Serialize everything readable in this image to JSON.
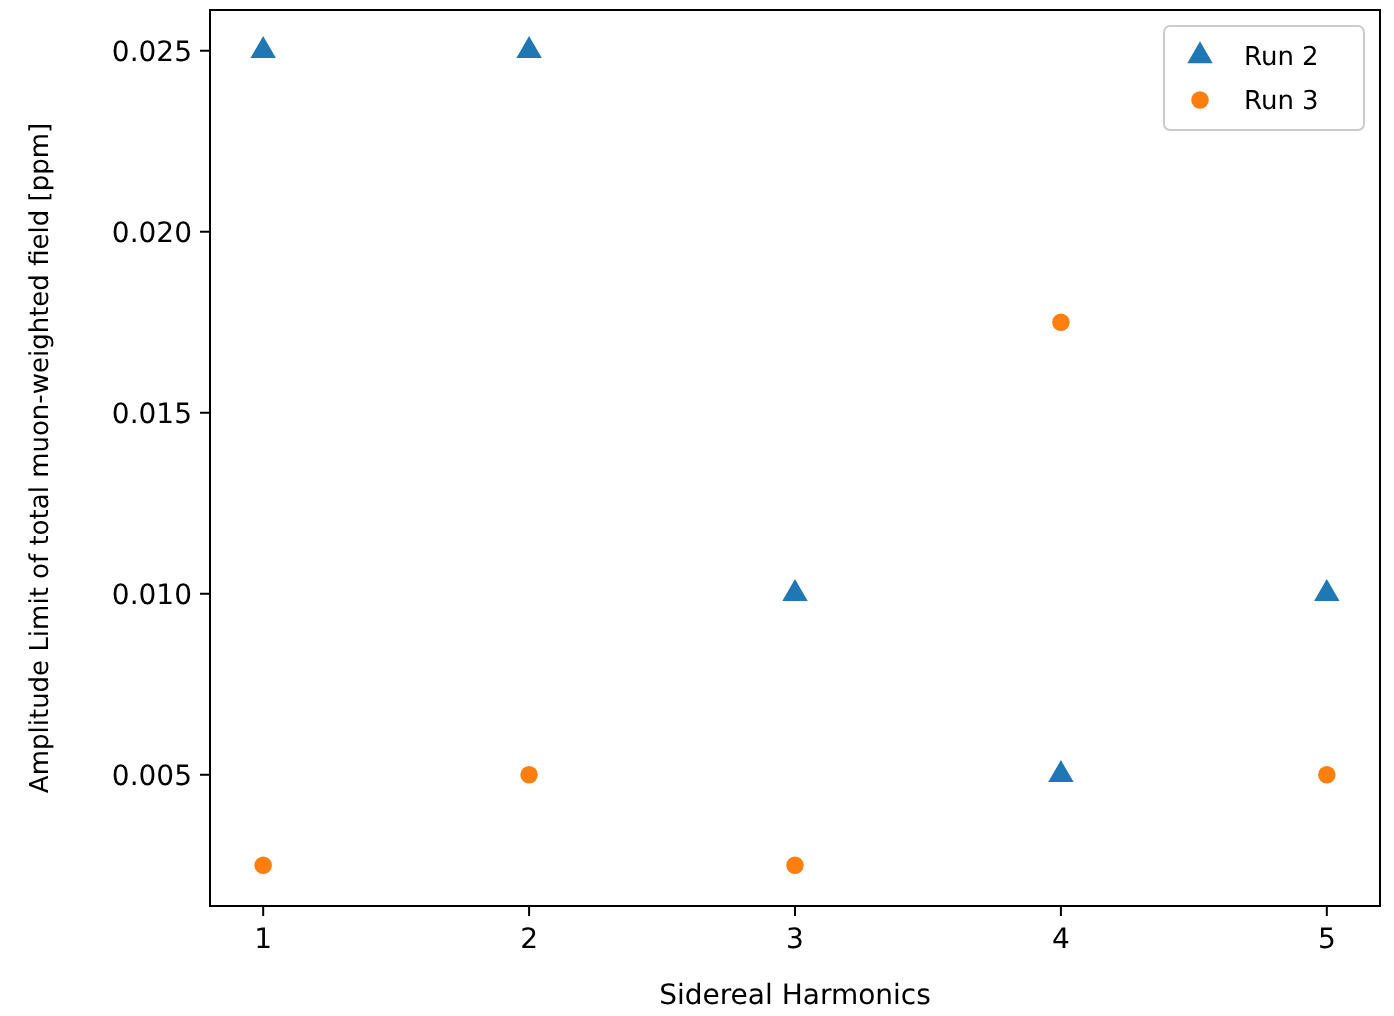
{
  "chart_data": {
    "type": "scatter",
    "xlabel": "Sidereal Harmonics",
    "ylabel": "Amplitude Limit of total muon-weighted field [ppm]",
    "x": [
      1,
      2,
      3,
      4,
      5
    ],
    "series": [
      {
        "name": "Run 2",
        "color": "#1f77b4",
        "marker": "triangle",
        "values": [
          0.025,
          0.025,
          0.01,
          0.005,
          0.01
        ]
      },
      {
        "name": "Run 3",
        "color": "#ff7f0e",
        "marker": "circle",
        "values": [
          0.0025,
          0.005,
          0.0025,
          0.0175,
          0.005
        ]
      }
    ],
    "xlim": [
      0.8,
      5.2
    ],
    "ylim": [
      0.001375,
      0.026125
    ],
    "xticks": [
      1,
      2,
      3,
      4,
      5
    ],
    "yticks": [
      {
        "value": 0.005,
        "label": "0.005"
      },
      {
        "value": 0.01,
        "label": "0.010"
      },
      {
        "value": 0.015,
        "label": "0.015"
      },
      {
        "value": 0.02,
        "label": "0.020"
      },
      {
        "value": 0.025,
        "label": "0.025"
      }
    ],
    "legend": "top right",
    "grid": false
  }
}
